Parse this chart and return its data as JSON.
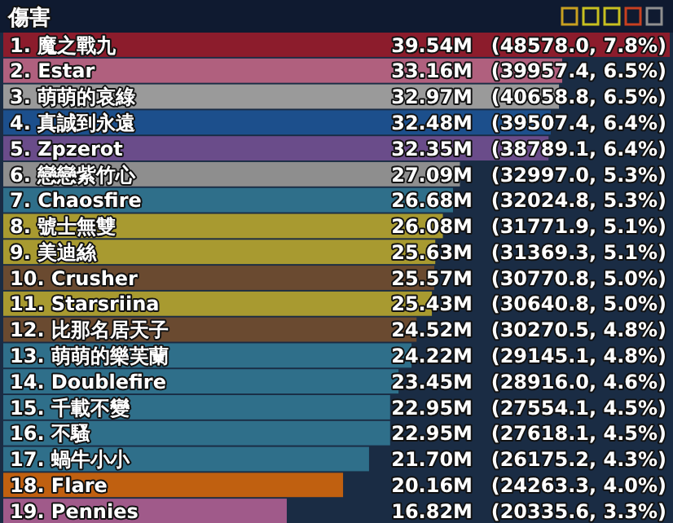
{
  "chart_data": {
    "type": "bar",
    "orientation": "horizontal",
    "title": "傷害",
    "categories": [
      "1. 魔之戰九",
      "2. Estar",
      "3. 萌萌的哀綠",
      "4. 真誠到永遠",
      "5. Zpzerot",
      "6. 戀戀紫竹心",
      "7. Chaosfire",
      "8. 號士無雙",
      "9. 美迪絲",
      "10. Crusher",
      "11. Starsriina",
      "12. 比那名居天子",
      "13. 萌萌的樂芙蘭",
      "14. Doublefire",
      "15. 千載不變",
      "16. 不騷",
      "17. 蝸牛小小",
      "18. Flare",
      "19. Pennies"
    ],
    "values": [
      39.54,
      33.16,
      32.97,
      32.48,
      32.35,
      27.09,
      26.68,
      26.08,
      25.63,
      25.57,
      25.43,
      24.52,
      24.22,
      23.45,
      22.95,
      22.95,
      21.7,
      20.16,
      16.82
    ],
    "value_labels": [
      "39.54M",
      "33.16M",
      "32.97M",
      "32.48M",
      "32.35M",
      "27.09M",
      "26.68M",
      "26.08M",
      "25.63M",
      "25.57M",
      "25.43M",
      "24.52M",
      "24.22M",
      "23.45M",
      "22.95M",
      "22.95M",
      "21.70M",
      "20.16M",
      "16.82M"
    ],
    "annotations": [
      "(48578.0, 7.8%)",
      "(39957.4, 6.5%)",
      "(40658.8, 6.5%)",
      "(39507.4, 6.4%)",
      "(38789.1, 6.4%)",
      "(32997.0, 5.3%)",
      "(32024.8, 5.3%)",
      "(31771.9, 5.1%)",
      "(31369.3, 5.1%)",
      "(30770.8, 5.0%)",
      "(30640.8, 5.0%)",
      "(30270.5, 4.8%)",
      "(29145.1, 4.8%)",
      "(28916.0, 4.6%)",
      "(27554.1, 4.5%)",
      "(27618.1, 4.5%)",
      "(26175.2, 4.3%)",
      "(24263.3, 4.0%)",
      "(20335.6, 3.3%)"
    ],
    "colors": [
      "#8c1c2c",
      "#b0607e",
      "#9a9a9a",
      "#1c4f8c",
      "#6a4c8a",
      "#8e8e8e",
      "#2f6f8a",
      "#a89a30",
      "#a89a30",
      "#6a4a30",
      "#a89a30",
      "#6a4a30",
      "#2f6f8a",
      "#2f6f8a",
      "#2f6f8a",
      "#2f6f8a",
      "#2f6f8a",
      "#c06010",
      "#a05a8a"
    ]
  }
}
